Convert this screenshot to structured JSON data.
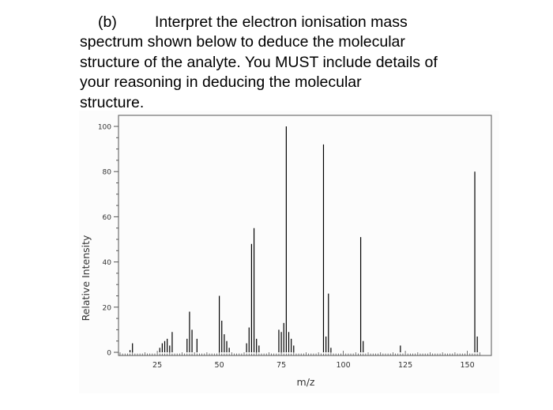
{
  "question": {
    "label": "(b)",
    "lines": [
      "Interpret the electron ionisation mass",
      "spectrum shown below to deduce the molecular",
      "structure of the analyte. You MUST include details of",
      "your reasoning in deducing the molecular",
      "structure."
    ]
  },
  "chart_data": {
    "type": "bar",
    "xlabel": "m/z",
    "ylabel": "Relative Intensity",
    "xlim": [
      10,
      155
    ],
    "ylim": [
      0,
      100
    ],
    "xticks": [
      25,
      50,
      75,
      100,
      125,
      150
    ],
    "yticks": [
      0,
      20,
      40,
      60,
      80,
      100
    ],
    "grid": false,
    "peaks": [
      {
        "mz": 14,
        "intensity": 1
      },
      {
        "mz": 15,
        "intensity": 4
      },
      {
        "mz": 26,
        "intensity": 2
      },
      {
        "mz": 27,
        "intensity": 4
      },
      {
        "mz": 28,
        "intensity": 5
      },
      {
        "mz": 29,
        "intensity": 6
      },
      {
        "mz": 30,
        "intensity": 3
      },
      {
        "mz": 31,
        "intensity": 9
      },
      {
        "mz": 37,
        "intensity": 6
      },
      {
        "mz": 38,
        "intensity": 18
      },
      {
        "mz": 39,
        "intensity": 10
      },
      {
        "mz": 41,
        "intensity": 6
      },
      {
        "mz": 50,
        "intensity": 25
      },
      {
        "mz": 51,
        "intensity": 14
      },
      {
        "mz": 52,
        "intensity": 8
      },
      {
        "mz": 53,
        "intensity": 5
      },
      {
        "mz": 54,
        "intensity": 2
      },
      {
        "mz": 61,
        "intensity": 4
      },
      {
        "mz": 62,
        "intensity": 11
      },
      {
        "mz": 63,
        "intensity": 48
      },
      {
        "mz": 64,
        "intensity": 55
      },
      {
        "mz": 65,
        "intensity": 6
      },
      {
        "mz": 66,
        "intensity": 3
      },
      {
        "mz": 74,
        "intensity": 10
      },
      {
        "mz": 75,
        "intensity": 9
      },
      {
        "mz": 76,
        "intensity": 13
      },
      {
        "mz": 77,
        "intensity": 100
      },
      {
        "mz": 78,
        "intensity": 9
      },
      {
        "mz": 79,
        "intensity": 6
      },
      {
        "mz": 80,
        "intensity": 3
      },
      {
        "mz": 92,
        "intensity": 92
      },
      {
        "mz": 93,
        "intensity": 7
      },
      {
        "mz": 94,
        "intensity": 26
      },
      {
        "mz": 95,
        "intensity": 2
      },
      {
        "mz": 107,
        "intensity": 51
      },
      {
        "mz": 108,
        "intensity": 5
      },
      {
        "mz": 123,
        "intensity": 3
      },
      {
        "mz": 153,
        "intensity": 80
      },
      {
        "mz": 154,
        "intensity": 7
      }
    ]
  }
}
